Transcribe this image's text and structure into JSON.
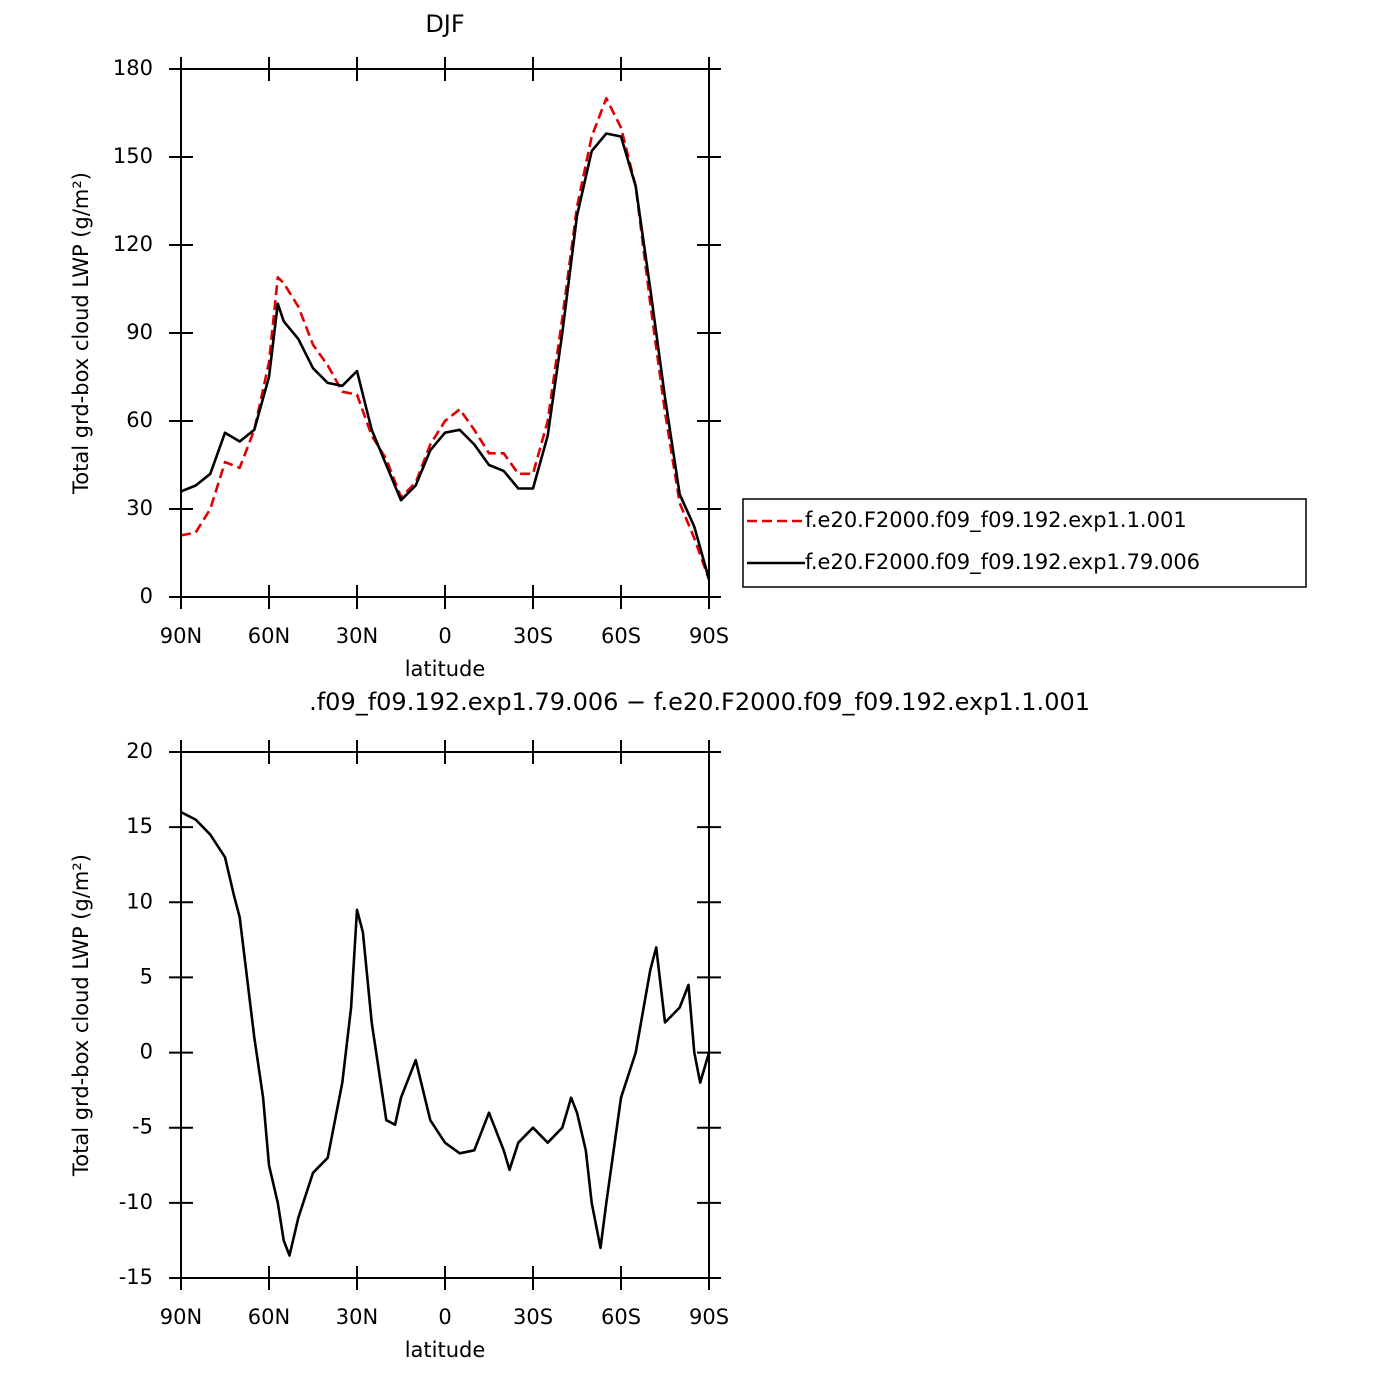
{
  "chart_data": [
    {
      "type": "line",
      "title": "DJF",
      "xlabel": "latitude",
      "ylabel": "Total grd-box cloud LWP (g/m²)",
      "x": [
        90,
        85,
        80,
        75,
        70,
        65,
        60,
        57,
        55,
        50,
        45,
        40,
        35,
        30,
        25,
        20,
        15,
        10,
        5,
        0,
        -5,
        -10,
        -15,
        -20,
        -25,
        -30,
        -35,
        -40,
        -45,
        -50,
        -55,
        -60,
        -65,
        -70,
        -75,
        -80,
        -85,
        -90
      ],
      "series": [
        {
          "name": "f.e20.F2000.f09_f09.192.exp1.1.001",
          "color": "#e00000",
          "linestyle": "dashed",
          "values": [
            21,
            22,
            30,
            46,
            44,
            57,
            80,
            109,
            107,
            99,
            86,
            79,
            70,
            69,
            55,
            47,
            34,
            39,
            52,
            60,
            64,
            57,
            49,
            49,
            42,
            42,
            60,
            95,
            133,
            157,
            170,
            160,
            140,
            100,
            63,
            32,
            20,
            6
          ]
        },
        {
          "name": "f.e20.F2000.f09_f09.192.exp1.79.006",
          "color": "#000000",
          "linestyle": "solid",
          "values": [
            36,
            38,
            42,
            56,
            53,
            57,
            75,
            100,
            94,
            88,
            78,
            73,
            72,
            77,
            57,
            45,
            33,
            38,
            50,
            56,
            57,
            52,
            45,
            43,
            37,
            37,
            55,
            90,
            130,
            152,
            158,
            157,
            140,
            105,
            68,
            35,
            24,
            6
          ]
        }
      ],
      "xlim": [
        90,
        -90
      ],
      "xticks": [
        {
          "value": 90,
          "label": "90N"
        },
        {
          "value": 60,
          "label": "60N"
        },
        {
          "value": 30,
          "label": "30N"
        },
        0,
        {
          "value": -30,
          "label": "30S"
        },
        {
          "value": -60,
          "label": "60S"
        },
        {
          "value": -90,
          "label": "90S"
        }
      ],
      "ylim": [
        0,
        180
      ],
      "yticks": [
        0,
        30,
        60,
        90,
        120,
        150,
        180
      ],
      "legend": "right"
    },
    {
      "type": "line",
      "title": ".f09_f09.192.exp1.79.006 − f.e20.F2000.f09_f09.192.exp1.1.001",
      "xlabel": "latitude",
      "ylabel": "Total grd-box cloud LWP (g/m²)",
      "x": [
        90,
        85,
        80,
        75,
        72,
        70,
        65,
        62,
        60,
        57,
        55,
        53,
        50,
        45,
        40,
        35,
        32,
        30,
        28,
        25,
        20,
        17,
        15,
        10,
        5,
        0,
        -5,
        -10,
        -15,
        -20,
        -22,
        -25,
        -30,
        -35,
        -40,
        -43,
        -45,
        -48,
        -50,
        -53,
        -55,
        -60,
        -65,
        -70,
        -72,
        -75,
        -80,
        -83,
        -85,
        -87,
        -90
      ],
      "series": [
        {
          "color": "#000000",
          "linestyle": "solid",
          "values": [
            16,
            15.5,
            14.5,
            13,
            10.5,
            9,
            1,
            -3,
            -7.5,
            -10,
            -12.5,
            -13.5,
            -11,
            -8,
            -7,
            -2,
            3,
            9.5,
            8,
            2,
            -4.5,
            -4.8,
            -3,
            -0.5,
            -4.5,
            -6,
            -6.7,
            -6.5,
            -4,
            -6.5,
            -7.8,
            -6,
            -5,
            -6,
            -5,
            -3,
            -4,
            -6.5,
            -10,
            -13,
            -10,
            -3,
            0,
            5.5,
            7,
            2,
            3,
            4.5,
            0,
            -2,
            0
          ]
        }
      ],
      "xlim": [
        90,
        -90
      ],
      "xticks": [
        {
          "value": 90,
          "label": "90N"
        },
        {
          "value": 60,
          "label": "60N"
        },
        {
          "value": 30,
          "label": "30N"
        },
        0,
        {
          "value": -30,
          "label": "30S"
        },
        {
          "value": -60,
          "label": "60S"
        },
        {
          "value": -90,
          "label": "90S"
        }
      ],
      "ylim": [
        -15,
        20
      ],
      "yticks": [
        -15,
        -10,
        -5,
        0,
        5,
        10,
        15,
        20
      ]
    }
  ]
}
